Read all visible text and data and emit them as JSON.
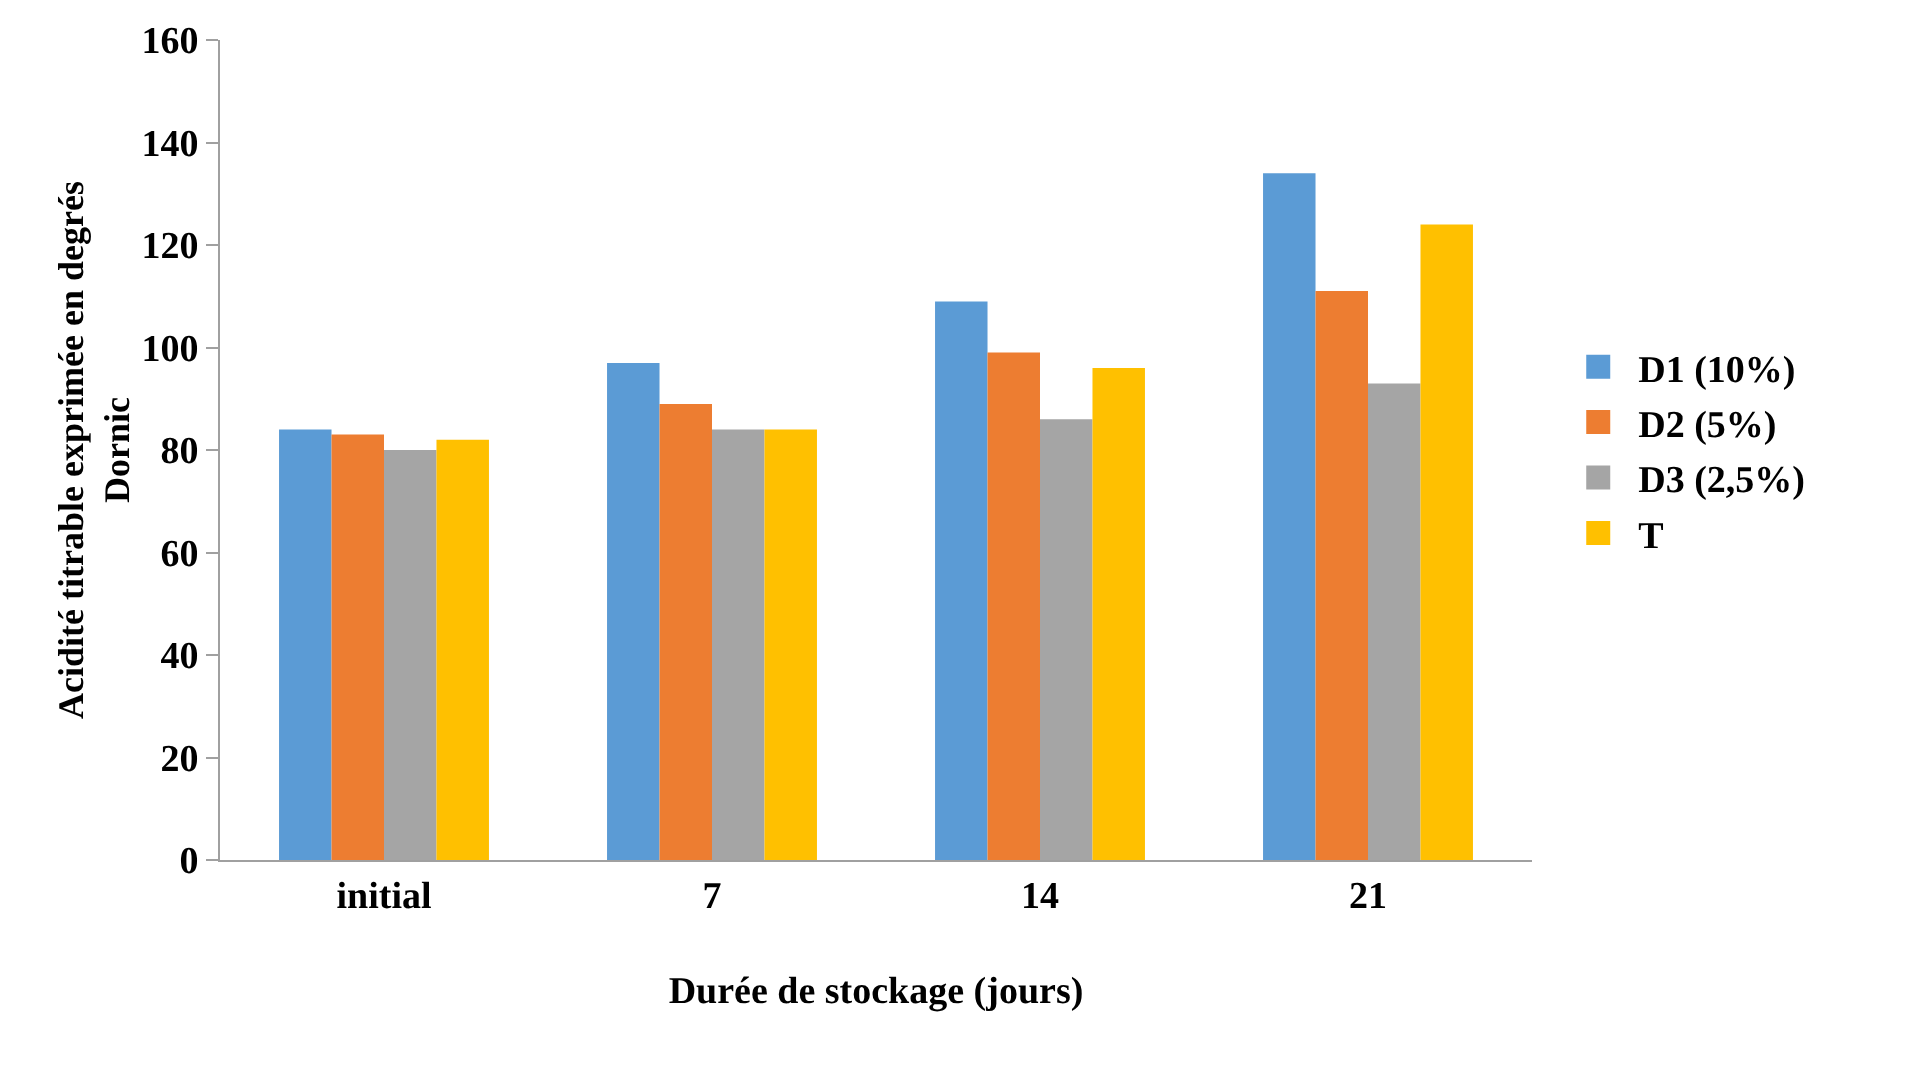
{
  "chart_data": {
    "type": "bar",
    "xlabel": "Durée de stockage (jours)",
    "ylabel": "Acidité titrable exprimée en degrés Dornic",
    "categories": [
      "initial",
      "7",
      "14",
      "21"
    ],
    "series": [
      {
        "name": "D1 (10%)",
        "color": "#5b9bd5",
        "values": [
          84,
          97,
          109,
          134
        ]
      },
      {
        "name": "D2 (5%)",
        "color": "#ed7d31",
        "values": [
          83,
          89,
          99,
          111
        ]
      },
      {
        "name": "D3 (2,5%)",
        "color": "#a5a5a5",
        "values": [
          80,
          84,
          86,
          93
        ]
      },
      {
        "name": "T",
        "color": "#ffc000",
        "values": [
          82,
          84,
          96,
          124
        ]
      }
    ],
    "ylim": [
      0,
      160
    ],
    "yticks": [
      0,
      20,
      40,
      60,
      80,
      100,
      120,
      140,
      160
    ],
    "grid": false,
    "legend": "right"
  }
}
